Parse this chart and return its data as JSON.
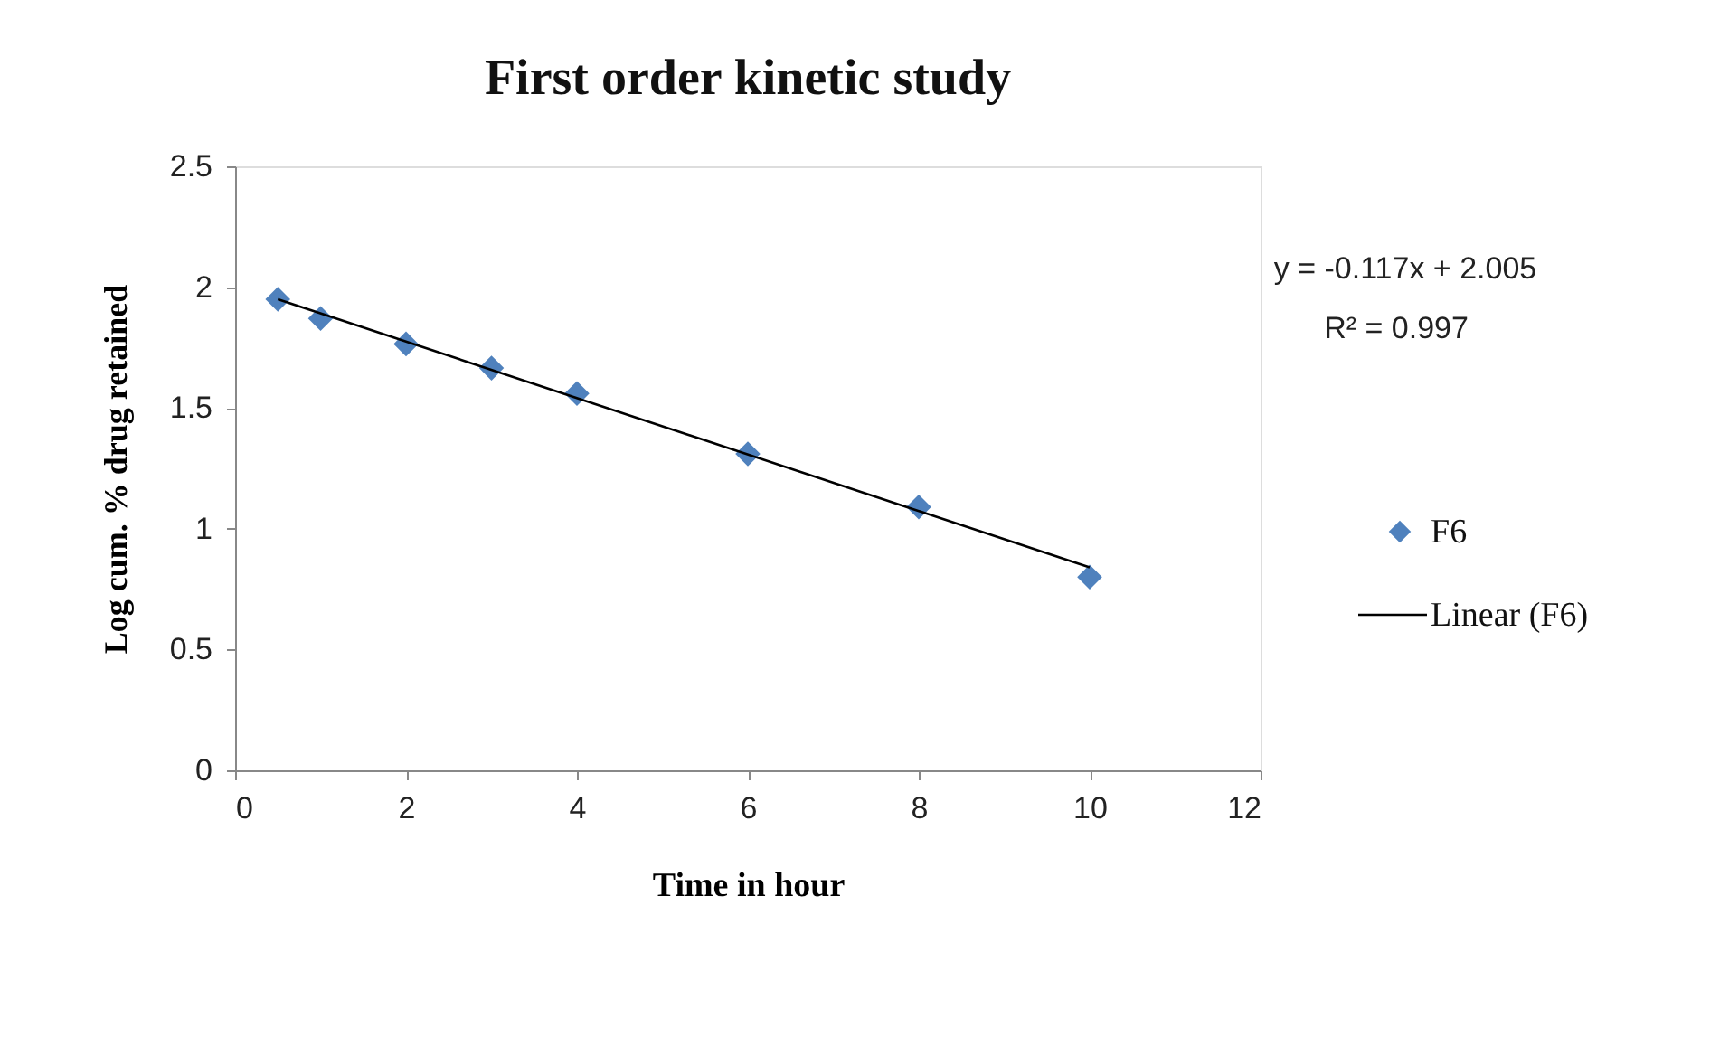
{
  "chart_data": {
    "type": "scatter",
    "title": "First order kinetic study",
    "xlabel": "Time in hour",
    "ylabel": "Log cum. % drug retained",
    "xlim": [
      0,
      12
    ],
    "xticks": [
      0,
      2,
      4,
      6,
      8,
      10,
      12
    ],
    "ylim": [
      0,
      2.5
    ],
    "yticks": [
      0,
      0.5,
      1,
      1.5,
      2,
      2.5
    ],
    "grid": false,
    "legend": "right",
    "annotations": [
      "y = -0.117x + 2.005",
      "R² = 0.997"
    ],
    "series": [
      {
        "name": "F6",
        "color": "#4f81bd",
        "marker": "diamond",
        "x": [
          0.5,
          1,
          2,
          3,
          4,
          6,
          8,
          10
        ],
        "values": [
          1.95,
          1.87,
          1.765,
          1.665,
          1.56,
          1.31,
          1.09,
          0.8
        ]
      },
      {
        "name": "Linear (F6)",
        "type": "line",
        "color": "#000000",
        "line_style": "solid",
        "x": [
          0.5,
          10
        ],
        "values": [
          1.95,
          0.84
        ]
      }
    ]
  }
}
